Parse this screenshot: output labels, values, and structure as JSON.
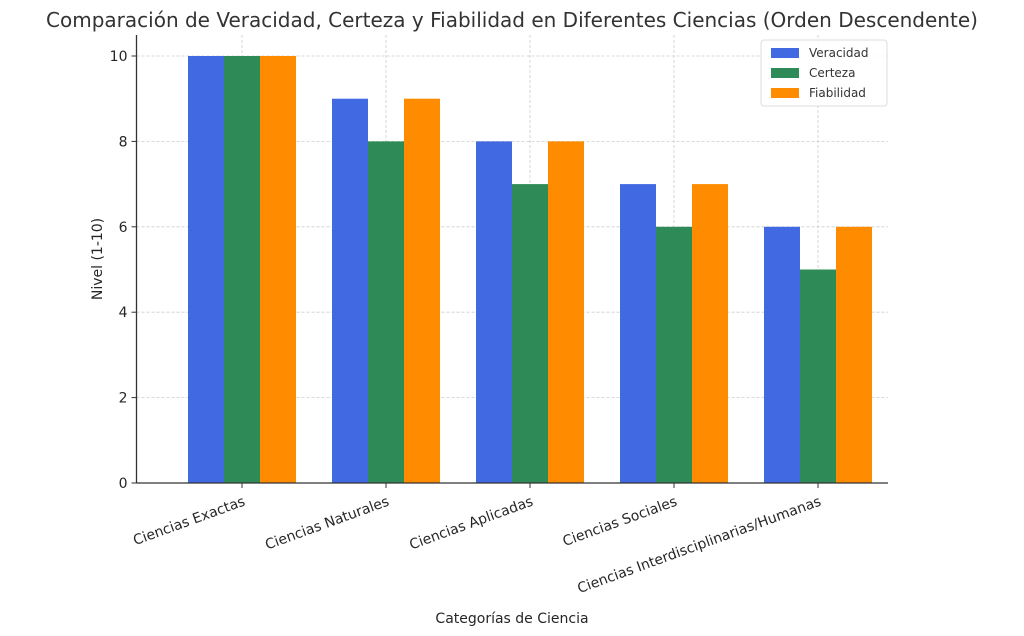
{
  "chart_data": {
    "type": "bar",
    "title": "Comparación de Veracidad, Certeza y Fiabilidad en Diferentes Ciencias (Orden Descendente)",
    "xlabel": "Categorías de Ciencia",
    "ylabel": "Nivel (1-10)",
    "ylim": [
      0,
      10.5
    ],
    "yticks": [
      0,
      2,
      4,
      6,
      8,
      10
    ],
    "grid": true,
    "legend_position": "top-right",
    "categories": [
      "Ciencias Exactas",
      "Ciencias Naturales",
      "Ciencias Aplicadas",
      "Ciencias Sociales",
      "Ciencias Interdisciplinarias/Humanas"
    ],
    "series": [
      {
        "name": "Veracidad",
        "color": "#4169e1",
        "values": [
          10,
          9,
          8,
          7,
          6
        ]
      },
      {
        "name": "Certeza",
        "color": "#2e8b57",
        "values": [
          10,
          8,
          7,
          6,
          5
        ]
      },
      {
        "name": "Fiabilidad",
        "color": "#ff8c00",
        "values": [
          10,
          9,
          8,
          7,
          6
        ]
      }
    ]
  }
}
